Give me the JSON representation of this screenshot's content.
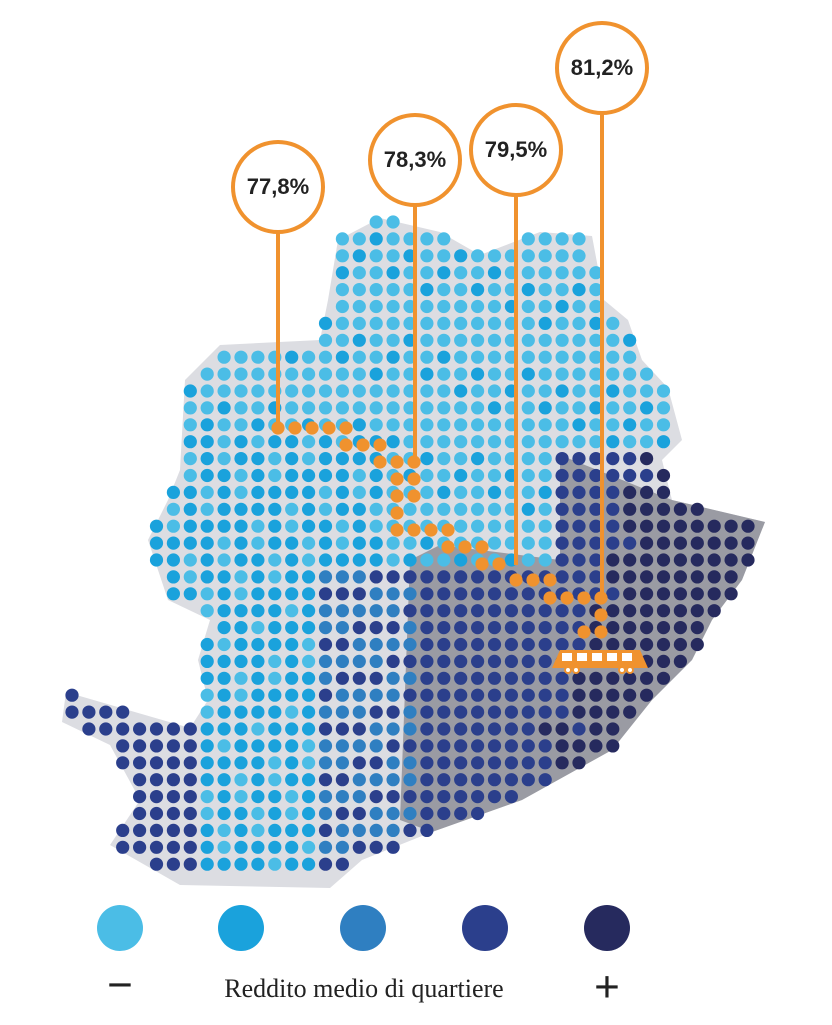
{
  "callouts": [
    {
      "label": "77,8%"
    },
    {
      "label": "78,3%"
    },
    {
      "label": "79,5%"
    },
    {
      "label": "81,2%"
    }
  ],
  "legend": {
    "minus": "−",
    "title": "Reddito medio di quartiere",
    "plus": "+"
  }
}
